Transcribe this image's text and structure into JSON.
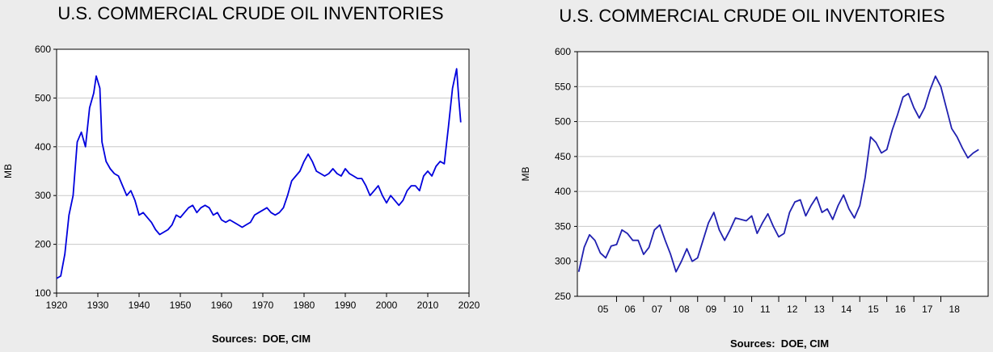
{
  "charts": [
    {
      "title": "U.S. COMMERCIAL CRUDE OIL INVENTORIES",
      "source": "Sources:  DOE, CIM",
      "ylabel": "MB",
      "line_color": "#0000dd",
      "y_ticks": [
        "100",
        "200",
        "300",
        "400",
        "500",
        "600"
      ],
      "x_ticks": [
        "1920",
        "1930",
        "1940",
        "1950",
        "1960",
        "1970",
        "1980",
        "1990",
        "2000",
        "2010",
        "2020"
      ]
    },
    {
      "title": "U.S. COMMERCIAL CRUDE OIL INVENTORIES",
      "source": "Sources:  DOE, CIM",
      "ylabel": "MB",
      "line_color": "#2020b0",
      "y_ticks": [
        "250",
        "300",
        "350",
        "400",
        "450",
        "500",
        "550",
        "600"
      ],
      "x_ticks": [
        "05",
        "06",
        "07",
        "08",
        "09",
        "10",
        "11",
        "12",
        "13",
        "14",
        "15",
        "16",
        "17",
        "18"
      ]
    }
  ],
  "chart_data": [
    {
      "type": "line",
      "title": "U.S. COMMERCIAL CRUDE OIL INVENTORIES",
      "ylabel": "MB",
      "xlim": [
        1920,
        2020
      ],
      "ylim": [
        100,
        600
      ],
      "grid": true,
      "series": [
        {
          "values": [
            [
              1920,
              130
            ],
            [
              1921,
              135
            ],
            [
              1922,
              180
            ],
            [
              1923,
              260
            ],
            [
              1924,
              300
            ],
            [
              1925,
              410
            ],
            [
              1926,
              430
            ],
            [
              1927,
              400
            ],
            [
              1928,
              480
            ],
            [
              1929,
              510
            ],
            [
              1929.6,
              545
            ],
            [
              1930.5,
              520
            ],
            [
              1931,
              410
            ],
            [
              1932,
              370
            ],
            [
              1933,
              355
            ],
            [
              1934,
              345
            ],
            [
              1935,
              340
            ],
            [
              1936,
              320
            ],
            [
              1937,
              300
            ],
            [
              1938,
              310
            ],
            [
              1939,
              290
            ],
            [
              1940,
              260
            ],
            [
              1941,
              265
            ],
            [
              1942,
              255
            ],
            [
              1943,
              245
            ],
            [
              1944,
              230
            ],
            [
              1945,
              220
            ],
            [
              1946,
              225
            ],
            [
              1947,
              230
            ],
            [
              1948,
              240
            ],
            [
              1949,
              260
            ],
            [
              1950,
              255
            ],
            [
              1951,
              265
            ],
            [
              1952,
              275
            ],
            [
              1953,
              280
            ],
            [
              1954,
              265
            ],
            [
              1955,
              275
            ],
            [
              1956,
              280
            ],
            [
              1957,
              275
            ],
            [
              1958,
              260
            ],
            [
              1959,
              265
            ],
            [
              1960,
              250
            ],
            [
              1961,
              245
            ],
            [
              1962,
              250
            ],
            [
              1963,
              245
            ],
            [
              1964,
              240
            ],
            [
              1965,
              235
            ],
            [
              1966,
              240
            ],
            [
              1967,
              245
            ],
            [
              1968,
              260
            ],
            [
              1969,
              265
            ],
            [
              1970,
              270
            ],
            [
              1971,
              275
            ],
            [
              1972,
              265
            ],
            [
              1973,
              260
            ],
            [
              1974,
              265
            ],
            [
              1975,
              275
            ],
            [
              1976,
              300
            ],
            [
              1977,
              330
            ],
            [
              1978,
              340
            ],
            [
              1979,
              350
            ],
            [
              1980,
              370
            ],
            [
              1981,
              385
            ],
            [
              1982,
              370
            ],
            [
              1983,
              350
            ],
            [
              1984,
              345
            ],
            [
              1985,
              340
            ],
            [
              1986,
              345
            ],
            [
              1987,
              355
            ],
            [
              1988,
              345
            ],
            [
              1989,
              340
            ],
            [
              1990,
              355
            ],
            [
              1991,
              345
            ],
            [
              1992,
              340
            ],
            [
              1993,
              335
            ],
            [
              1994,
              335
            ],
            [
              1995,
              320
            ],
            [
              1996,
              300
            ],
            [
              1997,
              310
            ],
            [
              1998,
              320
            ],
            [
              1999,
              300
            ],
            [
              2000,
              285
            ],
            [
              2001,
              300
            ],
            [
              2002,
              290
            ],
            [
              2003,
              280
            ],
            [
              2004,
              290
            ],
            [
              2005,
              310
            ],
            [
              2006,
              320
            ],
            [
              2007,
              320
            ],
            [
              2008,
              310
            ],
            [
              2009,
              340
            ],
            [
              2010,
              350
            ],
            [
              2011,
              340
            ],
            [
              2012,
              360
            ],
            [
              2013,
              370
            ],
            [
              2014,
              365
            ],
            [
              2015,
              440
            ],
            [
              2016,
              520
            ],
            [
              2017,
              560
            ],
            [
              2017.5,
              500
            ],
            [
              2018,
              450
            ]
          ]
        }
      ]
    },
    {
      "type": "line",
      "title": "U.S. COMMERCIAL CRUDE OIL INVENTORIES",
      "ylabel": "MB",
      "x_categories": [
        "05",
        "06",
        "07",
        "08",
        "09",
        "10",
        "11",
        "12",
        "13",
        "14",
        "15",
        "16",
        "17",
        "18"
      ],
      "ylim": [
        250,
        600
      ],
      "grid": true,
      "series": [
        {
          "values": [
            [
              2004.6,
              285
            ],
            [
              2004.8,
              320
            ],
            [
              2005.0,
              338
            ],
            [
              2005.2,
              330
            ],
            [
              2005.4,
              312
            ],
            [
              2005.6,
              305
            ],
            [
              2005.8,
              322
            ],
            [
              2006.0,
              324
            ],
            [
              2006.2,
              345
            ],
            [
              2006.4,
              340
            ],
            [
              2006.6,
              330
            ],
            [
              2006.8,
              330
            ],
            [
              2007.0,
              310
            ],
            [
              2007.2,
              320
            ],
            [
              2007.4,
              345
            ],
            [
              2007.6,
              352
            ],
            [
              2007.8,
              330
            ],
            [
              2008.0,
              310
            ],
            [
              2008.2,
              285
            ],
            [
              2008.4,
              300
            ],
            [
              2008.6,
              318
            ],
            [
              2008.8,
              300
            ],
            [
              2009.0,
              305
            ],
            [
              2009.2,
              330
            ],
            [
              2009.4,
              355
            ],
            [
              2009.6,
              370
            ],
            [
              2009.8,
              345
            ],
            [
              2010.0,
              330
            ],
            [
              2010.2,
              345
            ],
            [
              2010.4,
              362
            ],
            [
              2010.6,
              360
            ],
            [
              2010.8,
              358
            ],
            [
              2011.0,
              365
            ],
            [
              2011.2,
              340
            ],
            [
              2011.4,
              355
            ],
            [
              2011.6,
              368
            ],
            [
              2011.8,
              350
            ],
            [
              2012.0,
              335
            ],
            [
              2012.2,
              340
            ],
            [
              2012.4,
              370
            ],
            [
              2012.6,
              385
            ],
            [
              2012.8,
              388
            ],
            [
              2013.0,
              365
            ],
            [
              2013.2,
              380
            ],
            [
              2013.4,
              392
            ],
            [
              2013.6,
              370
            ],
            [
              2013.8,
              375
            ],
            [
              2014.0,
              360
            ],
            [
              2014.2,
              380
            ],
            [
              2014.4,
              395
            ],
            [
              2014.6,
              375
            ],
            [
              2014.8,
              362
            ],
            [
              2015.0,
              380
            ],
            [
              2015.2,
              420
            ],
            [
              2015.4,
              478
            ],
            [
              2015.6,
              470
            ],
            [
              2015.8,
              455
            ],
            [
              2016.0,
              460
            ],
            [
              2016.2,
              488
            ],
            [
              2016.4,
              510
            ],
            [
              2016.6,
              535
            ],
            [
              2016.8,
              540
            ],
            [
              2017.0,
              520
            ],
            [
              2017.2,
              505
            ],
            [
              2017.4,
              520
            ],
            [
              2017.6,
              545
            ],
            [
              2017.8,
              565
            ],
            [
              2018.0,
              550
            ],
            [
              2018.2,
              520
            ],
            [
              2018.4,
              490
            ],
            [
              2018.6,
              478
            ],
            [
              2018.8,
              462
            ],
            [
              2019.0,
              448
            ],
            [
              2019.2,
              455
            ],
            [
              2019.4,
              460
            ]
          ]
        }
      ]
    }
  ]
}
